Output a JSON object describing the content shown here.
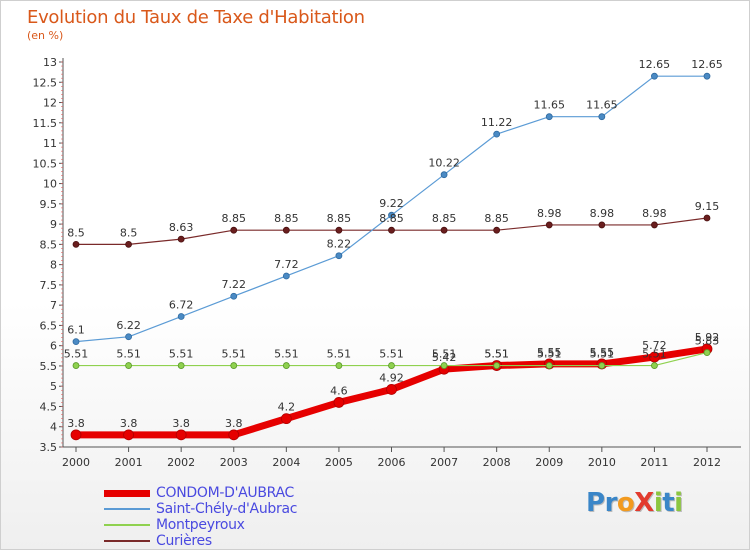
{
  "header": {
    "title": "Evolution du Taux de Taxe d'Habitation",
    "unit": "(en %)"
  },
  "logo": {
    "text": "ProXiti",
    "letters": [
      {
        "ch": "P",
        "color": "#3a86c8"
      },
      {
        "ch": "r",
        "color": "#3a86c8"
      },
      {
        "ch": "o",
        "color": "#f29a1f"
      },
      {
        "ch": "X",
        "color": "#e23b2e"
      },
      {
        "ch": "i",
        "color": "#8cc63f"
      },
      {
        "ch": "t",
        "color": "#3a86c8"
      },
      {
        "ch": "i",
        "color": "#8cc63f"
      }
    ]
  },
  "chart_data": {
    "type": "line",
    "title": "Evolution du Taux de Taxe d'Habitation",
    "ylabel": "(en %)",
    "xlabel": "",
    "x": [
      "2000",
      "2001",
      "2002",
      "2003",
      "2004",
      "2005",
      "2006",
      "2007",
      "2008",
      "2009",
      "2010",
      "2011",
      "2012"
    ],
    "ylim": [
      3.5,
      13
    ],
    "yticks": [
      "3.5",
      "4",
      "4.5",
      "5",
      "5.5",
      "6",
      "6.5",
      "7",
      "7.5",
      "8",
      "8.5",
      "9",
      "9.5",
      "10",
      "10.5",
      "11",
      "11.5",
      "12",
      "12.5",
      "13"
    ],
    "grid": false,
    "legend_position": "bottom-left",
    "series": [
      {
        "name": "CONDOM-D'AUBRAC",
        "color": "#e60000",
        "values": [
          3.8,
          3.8,
          3.8,
          3.8,
          4.2,
          4.6,
          4.92,
          5.42,
          5.51,
          5.55,
          5.55,
          5.72,
          5.92
        ],
        "labels": [
          "3.8",
          "3.8",
          "3.8",
          "3.8",
          "4.2",
          "4.6",
          "4.92",
          "5.42",
          "5.51",
          "5.55",
          "5.55",
          "5.72",
          "5.92"
        ]
      },
      {
        "name": "Saint-Chély-d'Aubrac",
        "color": "#5b9bd5",
        "values": [
          6.1,
          6.22,
          6.72,
          7.22,
          7.72,
          8.22,
          9.22,
          10.22,
          11.22,
          11.65,
          11.65,
          12.65,
          12.65
        ],
        "labels": [
          "6.1",
          "6.22",
          "6.72",
          "7.22",
          "7.72",
          "8.22",
          "9.22",
          "10.22",
          "11.22",
          "11.65",
          "11.65",
          "12.65",
          "12.65"
        ]
      },
      {
        "name": "Montpeyroux",
        "color": "#8fd14f",
        "values": [
          5.51,
          5.51,
          5.51,
          5.51,
          5.51,
          5.51,
          5.51,
          5.51,
          5.51,
          5.51,
          5.51,
          5.51,
          5.83
        ],
        "labels": [
          "5.51",
          "5.51",
          "5.51",
          "5.51",
          "5.51",
          "5.51",
          "5.51",
          "5.51",
          "5.51",
          "5.51",
          "5.51",
          "5.51",
          "5.83"
        ]
      },
      {
        "name": "Curières",
        "color": "#7a2a2a",
        "values": [
          8.5,
          8.5,
          8.63,
          8.85,
          8.85,
          8.85,
          8.85,
          8.85,
          8.85,
          8.98,
          8.98,
          8.98,
          9.15
        ],
        "labels": [
          "8.5",
          "8.5",
          "8.63",
          "8.85",
          "8.85",
          "8.85",
          "8.85",
          "8.85",
          "8.85",
          "8.98",
          "8.98",
          "8.98",
          "9.15"
        ]
      }
    ]
  }
}
